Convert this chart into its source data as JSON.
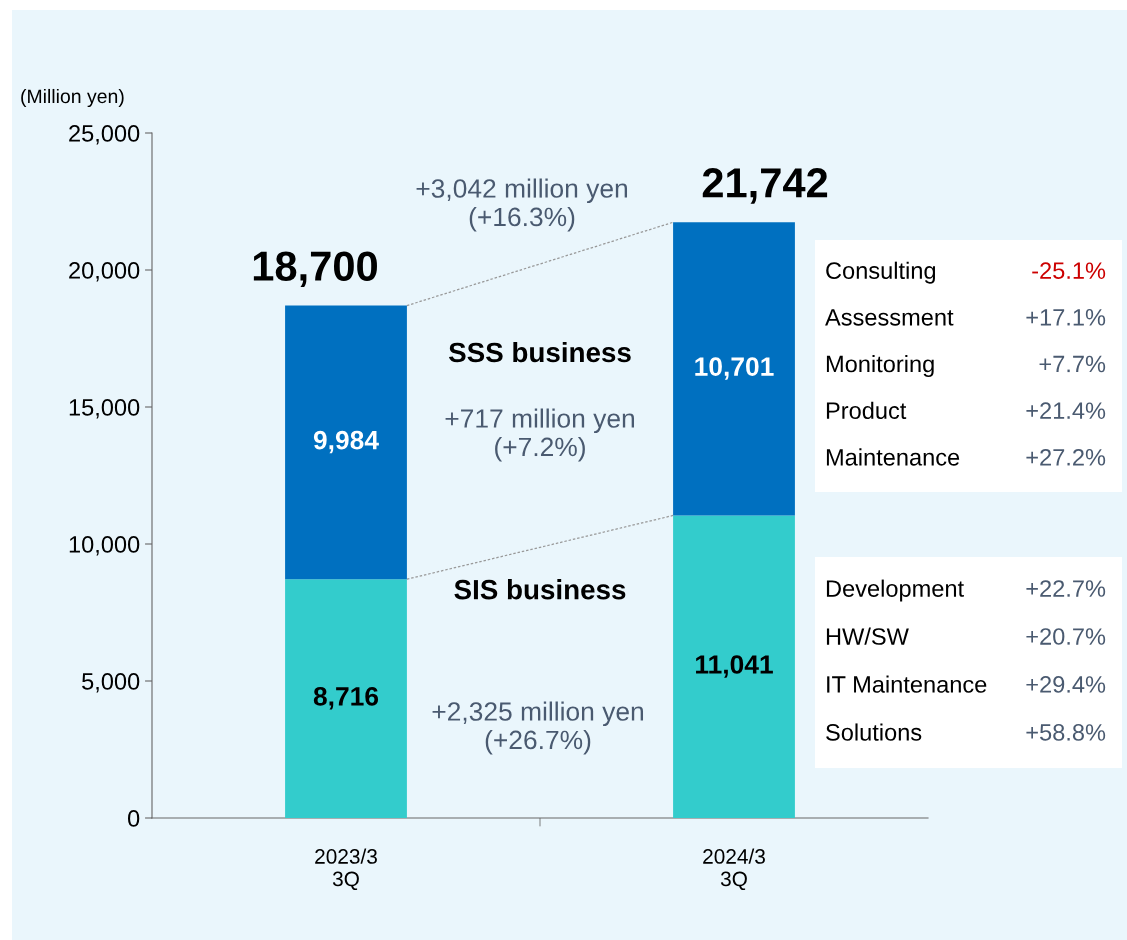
{
  "chart_data": {
    "type": "bar",
    "stacked": true,
    "ylabel": "(Million yen)",
    "categories": [
      "2023/3\n3Q",
      "2024/3\n3Q"
    ],
    "series": [
      {
        "name": "SIS business",
        "color": "#33cccc",
        "values": [
          8716,
          11041
        ],
        "value_labels": [
          "8,716",
          "11,041"
        ]
      },
      {
        "name": "SSS business",
        "color": "#0070c0",
        "values": [
          9984,
          10701
        ],
        "value_labels": [
          "9,984",
          "10,701"
        ]
      }
    ],
    "totals": [
      "18,700",
      "21,742"
    ],
    "ylim": [
      0,
      25000
    ],
    "yticks": [
      {
        "value": 0,
        "label": "0"
      },
      {
        "value": 5000,
        "label": "5,000"
      },
      {
        "value": 10000,
        "label": "10,000"
      },
      {
        "value": 15000,
        "label": "15,000"
      },
      {
        "value": 20000,
        "label": "20,000"
      },
      {
        "value": 25000,
        "label": "25,000"
      }
    ],
    "grid": false,
    "legend": false,
    "annotations": [
      "+3,042 million yen\n(+16.3%)",
      "+717 million yen\n(+7.2%)",
      "+2,325 million yen\n(+26.7%)",
      "Consulting",
      "-25.1%",
      "Assessment",
      "+17.1%",
      "Monitoring",
      "+7.7%",
      "Product",
      "+21.4%",
      "Maintenance",
      "+27.2%",
      "Development",
      "+22.7%",
      "HW/SW",
      "+20.7%",
      "IT Maintenance",
      "+29.4%",
      "Solutions",
      "+58.8%"
    ]
  }
}
